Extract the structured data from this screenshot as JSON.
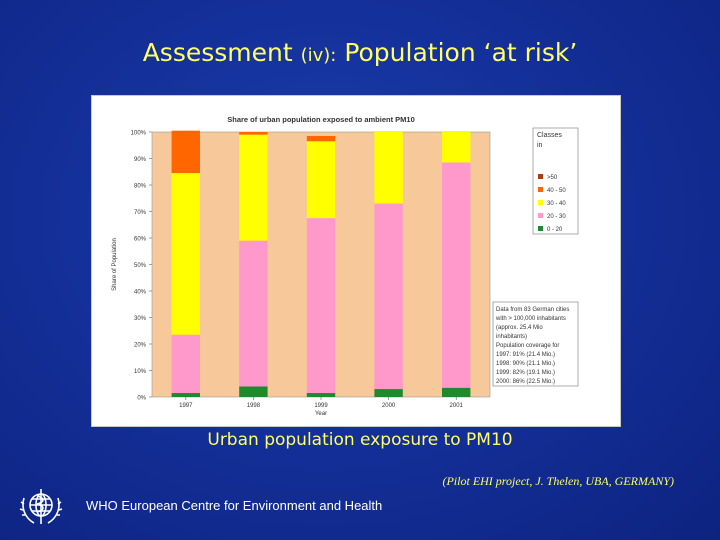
{
  "slide": {
    "title_main": "Assessment",
    "title_small": "(iv):",
    "title_rest": "Population ‘at risk’",
    "caption": "Urban population exposure to PM10",
    "source": "(Pilot EHI project, J. Thelen, UBA, GERMANY)",
    "footer": "WHO European Centre for Environment and Health"
  },
  "colors": {
    "background": "#14309a",
    "title": "#ffff66",
    "plot_bg": "#f7c89a"
  },
  "chart_data": {
    "type": "bar",
    "stacked": true,
    "title": "Share of urban population exposed to ambient PM10",
    "xlabel": "Year",
    "ylabel": "Share of Population",
    "ylim": [
      0,
      100
    ],
    "yticks": [
      "0%",
      "10%",
      "20%",
      "30%",
      "40%",
      "50%",
      "60%",
      "70%",
      "80%",
      "90%",
      "100%"
    ],
    "categories": [
      "1997",
      "1998",
      "1999",
      "2000",
      "2001"
    ],
    "series": [
      {
        "name": "0 - 20",
        "color": "#1e8a2e",
        "values": [
          1.5,
          4,
          1.5,
          3,
          3.5
        ]
      },
      {
        "name": "20 - 30",
        "color": "#ff99cc",
        "values": [
          22,
          55,
          66,
          70,
          85
        ]
      },
      {
        "name": "30 - 40",
        "color": "#ffff00",
        "values": [
          61,
          40,
          29,
          27,
          11.5
        ]
      },
      {
        "name": "40 - 50",
        "color": "#ff6600",
        "values": [
          16,
          1,
          2,
          0,
          0
        ]
      },
      {
        "name": ">50",
        "color": "#b03a10",
        "values": [
          0,
          0,
          0,
          0,
          0
        ]
      }
    ],
    "legend_title": "Classes",
    "legend_partial_line": "in",
    "legend_placement": "right",
    "note_lines": [
      "Data from 83 German cities",
      "with > 100,000 inhabitants",
      "(approx. 25.4 Mio",
      "inhabitants)",
      "Population coverage for",
      "1997: 91% (21.4 Mio.)",
      "1998: 90% (21.1 Mio.)",
      "1999: 82% (19.1 Mio.)",
      "2000: 86% (22.5 Mio.)"
    ]
  }
}
